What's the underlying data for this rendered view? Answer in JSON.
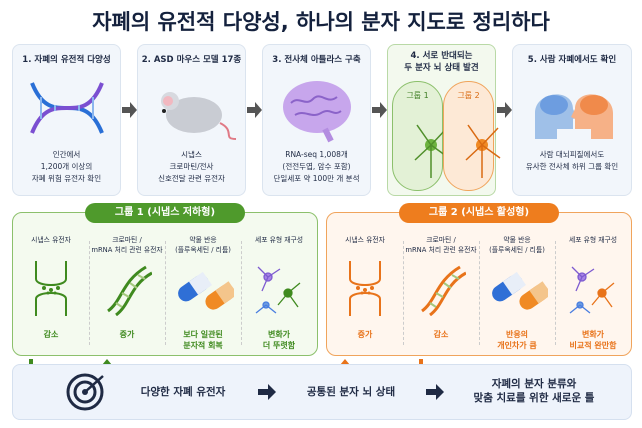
{
  "title": "자폐의 유전적 다양성, 하나의 분자 지도로 정리하다",
  "steps": [
    {
      "title": "1. 자폐의 유전적 다양성",
      "description": "인간에서\n1,200개 이상의\n자폐 위험 유전자 확인"
    },
    {
      "title": "2. ASD 마우스 모델 17종",
      "description": "시냅스\n크로마틴/전사\n신호전달 관련 유전자"
    },
    {
      "title": "3. 전사체 아틀라스 구축",
      "description": "RNA-seq 1,008개\n(전전두엽, 암수 포함)\n단일세포 약 100만 개 분석"
    },
    {
      "title": "4. 서로 반대되는\n두 분자 뇌 상태 발견",
      "groups": [
        "그룹 1",
        "그룹 2"
      ]
    },
    {
      "title": "5. 사람 자폐에서도 확인",
      "description": "사람 대뇌피질에서도\n유사한 전사체 하위 그룹 확인"
    }
  ],
  "groups": [
    {
      "title": "그룹 1 (시냅스 저하형)",
      "items": [
        {
          "label": "시냅스 유전자",
          "result": "감소"
        },
        {
          "label": "크로마틴 /\nmRNA 처리 관련 유전자",
          "result": "증가"
        },
        {
          "label": "약물 반응\n(플루옥세틴 / 리튬)",
          "result": "보다 일관된\n분자적 회복"
        },
        {
          "label": "세포 유형 재구성",
          "result": "변화가\n더 뚜렷함"
        }
      ]
    },
    {
      "title": "그룹 2 (시냅스 활성형)",
      "items": [
        {
          "label": "시냅스 유전자",
          "result": "증가"
        },
        {
          "label": "크로마틴 /\nmRNA 처리 관련 유전자",
          "result": "감소"
        },
        {
          "label": "약물 반응\n(플루옥세틴 / 리튬)",
          "result": "반응의\n개인차가 큼"
        },
        {
          "label": "세포 유형 재구성",
          "result": "변화가\n비교적 완만함"
        }
      ]
    }
  ],
  "summary": [
    "다양한 자폐 유전자",
    "공통된 분자 뇌 상태",
    "자폐의 분자 분류와\n맞춤 치료를 위한 새로운 틀"
  ]
}
